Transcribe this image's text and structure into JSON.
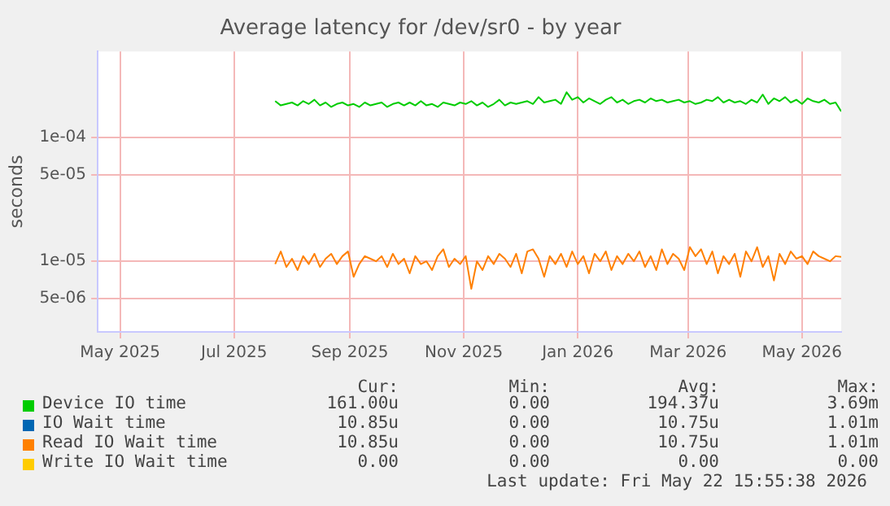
{
  "chart_data": {
    "type": "line",
    "title": "Average latency for /dev/sr0 - by year",
    "ylabel": "seconds",
    "log": "y",
    "grid": true,
    "legend": "bottom",
    "xlim": [
      "2025-04-19",
      "2026-05-22"
    ],
    "xticks": [
      {
        "value": "2025-05-01",
        "label": "May 2025"
      },
      {
        "value": "2025-07-01",
        "label": "Jul 2025"
      },
      {
        "value": "2025-09-01",
        "label": "Sep 2025"
      },
      {
        "value": "2025-11-01",
        "label": "Nov 2025"
      },
      {
        "value": "2026-01-01",
        "label": "Jan 2026"
      },
      {
        "value": "2026-03-01",
        "label": "Mar 2026"
      },
      {
        "value": "2026-05-01",
        "label": "May 2026"
      }
    ],
    "ylim": [
      2.7e-06,
      0.00049
    ],
    "yticks": [
      {
        "value": 5e-06,
        "label": "5e-06"
      },
      {
        "value": 1e-05,
        "label": "1e-05"
      },
      {
        "value": 5e-05,
        "label": "5e-05"
      },
      {
        "value": 0.0001,
        "label": "1e-04"
      }
    ],
    "x": [
      "2025-07-23",
      "2025-07-26",
      "2025-07-29",
      "2025-08-01",
      "2025-08-04",
      "2025-08-07",
      "2025-08-10",
      "2025-08-13",
      "2025-08-16",
      "2025-08-19",
      "2025-08-22",
      "2025-08-25",
      "2025-08-28",
      "2025-08-31",
      "2025-09-03",
      "2025-09-06",
      "2025-09-09",
      "2025-09-12",
      "2025-09-15",
      "2025-09-18",
      "2025-09-21",
      "2025-09-24",
      "2025-09-27",
      "2025-09-30",
      "2025-10-03",
      "2025-10-06",
      "2025-10-09",
      "2025-10-12",
      "2025-10-15",
      "2025-10-18",
      "2025-10-21",
      "2025-10-24",
      "2025-10-27",
      "2025-10-30",
      "2025-11-02",
      "2025-11-05",
      "2025-11-08",
      "2025-11-11",
      "2025-11-14",
      "2025-11-17",
      "2025-11-20",
      "2025-11-23",
      "2025-11-26",
      "2025-11-29",
      "2025-12-02",
      "2025-12-05",
      "2025-12-08",
      "2025-12-11",
      "2025-12-14",
      "2025-12-17",
      "2025-12-20",
      "2025-12-23",
      "2025-12-26",
      "2025-12-29",
      "2026-01-01",
      "2026-01-04",
      "2026-01-07",
      "2026-01-10",
      "2026-01-13",
      "2026-01-16",
      "2026-01-19",
      "2026-01-22",
      "2026-01-25",
      "2026-01-28",
      "2026-01-31",
      "2026-02-03",
      "2026-02-06",
      "2026-02-09",
      "2026-02-12",
      "2026-02-15",
      "2026-02-18",
      "2026-02-21",
      "2026-02-24",
      "2026-02-27",
      "2026-03-02",
      "2026-03-05",
      "2026-03-08",
      "2026-03-11",
      "2026-03-14",
      "2026-03-17",
      "2026-03-20",
      "2026-03-23",
      "2026-03-26",
      "2026-03-29",
      "2026-04-01",
      "2026-04-04",
      "2026-04-07",
      "2026-04-10",
      "2026-04-13",
      "2026-04-16",
      "2026-04-19",
      "2026-04-22",
      "2026-04-25",
      "2026-04-28",
      "2026-05-01",
      "2026-05-04",
      "2026-05-07",
      "2026-05-10",
      "2026-05-13",
      "2026-05-16",
      "2026-05-19",
      "2026-05-22"
    ],
    "series": [
      {
        "name": "Device IO time",
        "color": "#00cc00",
        "values": [
          0.000195,
          0.00018,
          0.000185,
          0.00019,
          0.00018,
          0.000195,
          0.000185,
          0.0002,
          0.00018,
          0.00019,
          0.000175,
          0.000185,
          0.00019,
          0.00018,
          0.000185,
          0.000175,
          0.00019,
          0.00018,
          0.000185,
          0.00019,
          0.000175,
          0.000185,
          0.00019,
          0.00018,
          0.00019,
          0.00018,
          0.000195,
          0.00018,
          0.000185,
          0.000175,
          0.00019,
          0.000185,
          0.00018,
          0.00019,
          0.000185,
          0.000195,
          0.00018,
          0.00019,
          0.000175,
          0.000185,
          0.0002,
          0.00018,
          0.00019,
          0.000185,
          0.00019,
          0.000195,
          0.000185,
          0.00021,
          0.00019,
          0.000195,
          0.0002,
          0.000185,
          0.00023,
          0.0002,
          0.00021,
          0.00019,
          0.000205,
          0.000195,
          0.000185,
          0.0002,
          0.00021,
          0.00019,
          0.0002,
          0.000185,
          0.000195,
          0.0002,
          0.00019,
          0.000205,
          0.000195,
          0.0002,
          0.00019,
          0.000195,
          0.0002,
          0.00019,
          0.000195,
          0.000185,
          0.00019,
          0.0002,
          0.000195,
          0.00021,
          0.00019,
          0.0002,
          0.00019,
          0.000195,
          0.000185,
          0.0002,
          0.00019,
          0.00022,
          0.000185,
          0.000205,
          0.000195,
          0.00021,
          0.00019,
          0.0002,
          0.000185,
          0.000205,
          0.000195,
          0.00019,
          0.0002,
          0.000185,
          0.00019,
          0.000161
        ]
      },
      {
        "name": "IO Wait time",
        "color": "#0066b3",
        "values": [
          null,
          null,
          null,
          null,
          null,
          null,
          null,
          null,
          null,
          null,
          null,
          null,
          null,
          null,
          null,
          null,
          null,
          null,
          null,
          null,
          null,
          null,
          null,
          null,
          null,
          null,
          null,
          null,
          null,
          null,
          null,
          null,
          null,
          null,
          null,
          null,
          null,
          null,
          null,
          null,
          null,
          null,
          null,
          null,
          null,
          null,
          null,
          null,
          null,
          null,
          null,
          null,
          null,
          null,
          null,
          null,
          null,
          null,
          null,
          null,
          null,
          null,
          null,
          null,
          null,
          null,
          null,
          null,
          null,
          null,
          null,
          null,
          null,
          null,
          null,
          null,
          null,
          null,
          null,
          null,
          null,
          null,
          null,
          null,
          null,
          null,
          null,
          null,
          null,
          null,
          null,
          null,
          null,
          null,
          null,
          null,
          null,
          null,
          null,
          null,
          null,
          null
        ]
      },
      {
        "name": "Read IO Wait time",
        "color": "#ff8000",
        "values": [
          9.5e-06,
          1.2e-05,
          9e-06,
          1.05e-05,
          8.5e-06,
          1.1e-05,
          9.5e-06,
          1.15e-05,
          9e-06,
          1.05e-05,
          1.15e-05,
          9.5e-06,
          1.1e-05,
          1.2e-05,
          7.5e-06,
          9.5e-06,
          1.1e-05,
          1.05e-05,
          1e-05,
          1.1e-05,
          9e-06,
          1.15e-05,
          9.5e-06,
          1.05e-05,
          8e-06,
          1.1e-05,
          9.5e-06,
          1e-05,
          8.5e-06,
          1.1e-05,
          1.25e-05,
          9e-06,
          1.05e-05,
          9.5e-06,
          1.1e-05,
          6e-06,
          1e-05,
          8.5e-06,
          1.1e-05,
          9.5e-06,
          1.15e-05,
          1.05e-05,
          9e-06,
          1.15e-05,
          8e-06,
          1.2e-05,
          1.25e-05,
          1.05e-05,
          7.5e-06,
          1.1e-05,
          9.5e-06,
          1.15e-05,
          9e-06,
          1.2e-05,
          9.5e-06,
          1.1e-05,
          8e-06,
          1.15e-05,
          1e-05,
          1.2e-05,
          8.5e-06,
          1.1e-05,
          9.5e-06,
          1.15e-05,
          1e-05,
          1.2e-05,
          9e-06,
          1.1e-05,
          8.5e-06,
          1.25e-05,
          9.5e-06,
          1.15e-05,
          1.05e-05,
          8.5e-06,
          1.3e-05,
          1.1e-05,
          1.25e-05,
          9.5e-06,
          1.2e-05,
          8e-06,
          1.1e-05,
          9.5e-06,
          1.15e-05,
          7.5e-06,
          1.2e-05,
          1e-05,
          1.3e-05,
          9e-06,
          1.1e-05,
          7e-06,
          1.15e-05,
          9.5e-06,
          1.2e-05,
          1.05e-05,
          1.1e-05,
          9.5e-06,
          1.2e-05,
          1.1e-05,
          1.05e-05,
          1e-05,
          1.1e-05,
          1.085e-05
        ]
      },
      {
        "name": "Write IO Wait time",
        "color": "#ffcc00",
        "values": [
          null,
          null,
          null,
          null,
          null,
          null,
          null,
          null,
          null,
          null,
          null,
          null,
          null,
          null,
          null,
          null,
          null,
          null,
          null,
          null,
          null,
          null,
          null,
          null,
          null,
          null,
          null,
          null,
          null,
          null,
          null,
          null,
          null,
          null,
          null,
          null,
          null,
          null,
          null,
          null,
          null,
          null,
          null,
          null,
          null,
          null,
          null,
          null,
          null,
          null,
          null,
          null,
          null,
          null,
          null,
          null,
          null,
          null,
          null,
          null,
          null,
          null,
          null,
          null,
          null,
          null,
          null,
          null,
          null,
          null,
          null,
          null,
          null,
          null,
          null,
          null,
          null,
          null,
          null,
          null,
          null,
          null,
          null,
          null,
          null,
          null,
          null,
          null,
          null,
          null,
          null,
          null,
          null,
          null,
          null,
          null,
          null,
          null,
          null,
          null,
          null,
          null
        ]
      }
    ],
    "annotations": [
      "Cur:",
      "Min:",
      "Avg:",
      "Max:",
      "161.00u",
      "0.00",
      "194.37u",
      "3.69m",
      "10.85u",
      "0.00",
      "10.75u",
      "1.01m",
      "10.85u",
      "0.00",
      "10.75u",
      "1.01m",
      "0.00",
      "0.00",
      "0.00",
      "0.00",
      "Last update: Fri May 22 15:55:38 2026"
    ]
  }
}
